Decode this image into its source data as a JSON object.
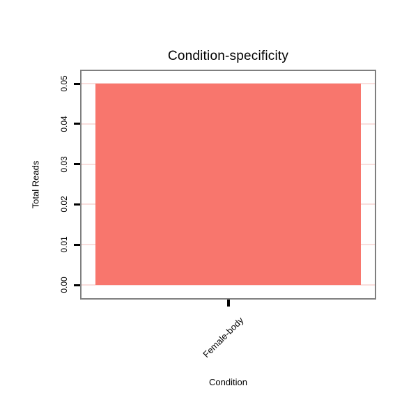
{
  "chart_data": {
    "type": "bar",
    "title": "Condition-specificity",
    "xlabel": "Condition",
    "ylabel": "Total Reads",
    "categories": [
      "Female-body"
    ],
    "values": [
      0.05
    ],
    "yticks": [
      "0.00",
      "0.01",
      "0.02",
      "0.03",
      "0.04",
      "0.05"
    ],
    "ylim": [
      0,
      0.05
    ],
    "grid": true,
    "legend": "none",
    "bar_color": "#F8766D",
    "grid_color": "#F9DEDC",
    "panel_border_color": "#7f7f7f",
    "tick_color": "#000000"
  }
}
